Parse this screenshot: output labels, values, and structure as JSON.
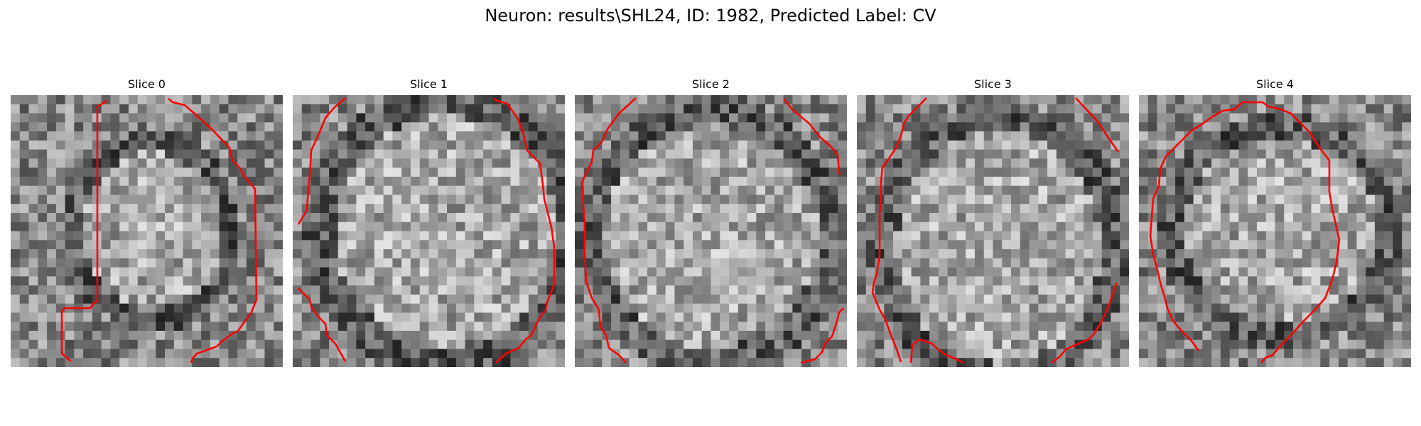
{
  "figure": {
    "title": "Neuron: results\\SHL24, ID: 1982, Predicted Label: CV"
  },
  "panels": [
    {
      "title": "Slice 0"
    },
    {
      "title": "Slice 1"
    },
    {
      "title": "Slice 2"
    },
    {
      "title": "Slice 3"
    },
    {
      "title": "Slice 4"
    }
  ],
  "colors": {
    "contour": "#ff0000",
    "background": "#ffffff"
  },
  "image": {
    "colormap": "grayscale",
    "grid": [
      30,
      30
    ]
  }
}
